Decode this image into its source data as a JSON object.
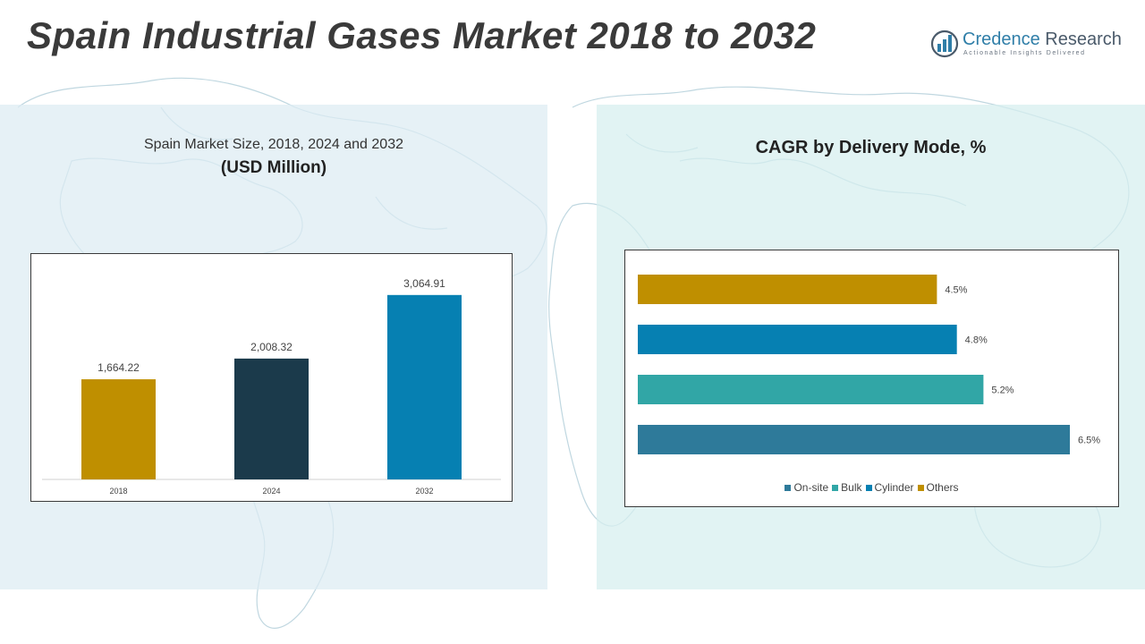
{
  "title": "Spain Industrial Gases Market 2018 to 2032",
  "brand": {
    "name_part1": "Credence",
    "name_part2": " Research",
    "tagline": "Actionable Insights Delivered",
    "logo_icon": "credence-bars-logo-icon"
  },
  "colors": {
    "left_panel": "#dcebf2",
    "right_panel": "#d6eeee",
    "gold": "#bf8f00",
    "navy": "#1b3a4b",
    "blue": "#0680b2",
    "teal": "#31a6a6",
    "steel": "#2e7a9a"
  },
  "chart_data": [
    {
      "type": "bar",
      "title": "Spain Market Size, 2018, 2024 and 2032",
      "unit_label": "(USD Million)",
      "categories": [
        "2018",
        "2024",
        "2032"
      ],
      "values": [
        1664.22,
        2008.32,
        3064.91
      ],
      "value_labels": [
        "1,664.22",
        "2,008.32",
        "3,064.91"
      ],
      "colors": [
        "#bf8f00",
        "#1b3a4b",
        "#0680b2"
      ],
      "ylim": [
        0,
        3300
      ],
      "grid": false,
      "legend": "none"
    },
    {
      "type": "bar",
      "orientation": "horizontal",
      "title": "CAGR by Delivery Mode, %",
      "rows": [
        {
          "series": "Others",
          "value": 4.5,
          "label": "4.5%",
          "color": "#bf8f00"
        },
        {
          "series": "Cylinder",
          "value": 4.8,
          "label": "4.8%",
          "color": "#0680b2"
        },
        {
          "series": "Bulk",
          "value": 5.2,
          "label": "5.2%",
          "color": "#31a6a6"
        },
        {
          "series": "On-site",
          "value": 6.5,
          "label": "6.5%",
          "color": "#2e7a9a"
        }
      ],
      "legend_entries": [
        {
          "name": "On-site",
          "color": "#2e7a9a"
        },
        {
          "name": "Bulk",
          "color": "#31a6a6"
        },
        {
          "name": "Cylinder",
          "color": "#0680b2"
        },
        {
          "name": "Others",
          "color": "#bf8f00"
        }
      ],
      "xlim": [
        0,
        6.5
      ],
      "grid": false,
      "legend": "bottom"
    }
  ]
}
